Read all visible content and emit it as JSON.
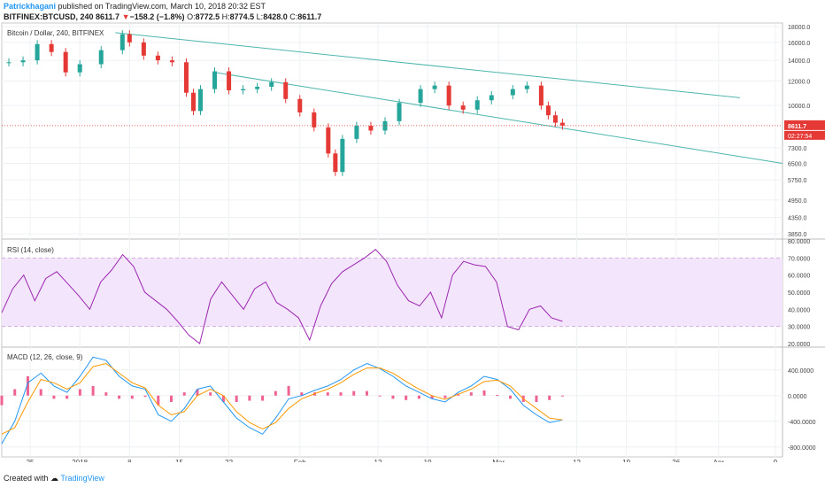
{
  "header": {
    "author": "Patrickhagani",
    "published": "published on TradingView.com, March 10, 2018 20:32 EST",
    "symbol": "BITFINEX:BTCUSD, 240",
    "last": "8611.7",
    "change_arrow": "▼",
    "change": "−158.2 (−1.8%)",
    "o_label": "O:",
    "o_value": "8772.5",
    "h_label": "H:",
    "h_value": "8774.5",
    "l_label": "L:",
    "l_value": "8428.0",
    "c_label": "C:",
    "c_value": "8611.7"
  },
  "footer": {
    "created_with": "Created with",
    "brand": "TradingView"
  },
  "colors": {
    "up": "#26a69a",
    "down": "#e53935",
    "trendline": "#4db6ac",
    "rsi": "#9c27b0",
    "rsi_band": "#f3e5fc",
    "macd": "#2196f3",
    "signal": "#ff9800",
    "hist": "#f06292",
    "price_marker": "#e53935"
  },
  "chart_data": [
    {
      "type": "line",
      "title": "Bitcoin / Dollar, 240, BITFINEX",
      "scale": "log",
      "y_ticks": [
        "18000.0",
        "16000.0",
        "14000.0",
        "12000.0",
        "10000.0",
        "8611.7",
        "7300.0",
        "6500.0",
        "5750.0",
        "4950.0",
        "4350.0",
        "3850.0"
      ],
      "ylim": [
        3850,
        18000
      ],
      "x_ticks": [
        "25",
        "2018",
        "8",
        "15",
        "22",
        "Feb",
        "12",
        "19",
        "Mar",
        "12",
        "19",
        "26",
        "Apr",
        "9"
      ],
      "last_price_label": "8611.7",
      "countdown_label": "02:27:54",
      "series": [
        {
          "values": [
            {
              "x": "2017-12-22",
              "y": 13800
            },
            {
              "x": "2017-12-24",
              "y": 14000
            },
            {
              "x": "2017-12-26",
              "y": 15800
            },
            {
              "x": "2017-12-28",
              "y": 14900
            },
            {
              "x": "2017-12-30",
              "y": 12800
            },
            {
              "x": "2018-01-01",
              "y": 13600
            },
            {
              "x": "2018-01-04",
              "y": 15100
            },
            {
              "x": "2018-01-07",
              "y": 17000
            },
            {
              "x": "2018-01-08",
              "y": 16000
            },
            {
              "x": "2018-01-10",
              "y": 14500
            },
            {
              "x": "2018-01-12",
              "y": 14000
            },
            {
              "x": "2018-01-14",
              "y": 13800
            },
            {
              "x": "2018-01-16",
              "y": 11000
            },
            {
              "x": "2018-01-17",
              "y": 9600
            },
            {
              "x": "2018-01-18",
              "y": 11300
            },
            {
              "x": "2018-01-20",
              "y": 12900
            },
            {
              "x": "2018-01-22",
              "y": 11200
            },
            {
              "x": "2018-01-24",
              "y": 11300
            },
            {
              "x": "2018-01-26",
              "y": 11500
            },
            {
              "x": "2018-01-28",
              "y": 11900
            },
            {
              "x": "2018-01-30",
              "y": 10500
            },
            {
              "x": "2018-02-01",
              "y": 9500
            },
            {
              "x": "2018-02-03",
              "y": 8500
            },
            {
              "x": "2018-02-05",
              "y": 7000
            },
            {
              "x": "2018-02-06",
              "y": 6100
            },
            {
              "x": "2018-02-07",
              "y": 7800
            },
            {
              "x": "2018-02-09",
              "y": 8600
            },
            {
              "x": "2018-02-11",
              "y": 8300
            },
            {
              "x": "2018-02-13",
              "y": 8900
            },
            {
              "x": "2018-02-15",
              "y": 10200
            },
            {
              "x": "2018-02-18",
              "y": 11300
            },
            {
              "x": "2018-02-20",
              "y": 11600
            },
            {
              "x": "2018-02-22",
              "y": 10000
            },
            {
              "x": "2018-02-24",
              "y": 9700
            },
            {
              "x": "2018-02-26",
              "y": 10400
            },
            {
              "x": "2018-02-28",
              "y": 10800
            },
            {
              "x": "2018-03-03",
              "y": 11300
            },
            {
              "x": "2018-03-05",
              "y": 11600
            },
            {
              "x": "2018-03-07",
              "y": 10000
            },
            {
              "x": "2018-03-08",
              "y": 9300
            },
            {
              "x": "2018-03-09",
              "y": 8800
            },
            {
              "x": "2018-03-10",
              "y": 8611.7
            }
          ]
        }
      ],
      "trendlines": [
        {
          "from": {
            "x": "2018-01-06",
            "y": 17200
          },
          "to": {
            "x": "2018-04-04",
            "y": 10600
          }
        },
        {
          "from": {
            "x": "2018-01-20",
            "y": 12800
          },
          "to": {
            "x": "2018-04-10",
            "y": 6500
          }
        }
      ]
    },
    {
      "type": "line",
      "title": "RSI (14, close)",
      "ylim": [
        20,
        80
      ],
      "y_ticks": [
        "80.0000",
        "70.0000",
        "60.0000",
        "50.0000",
        "40.0000",
        "30.0000",
        "20.0000"
      ],
      "bands": [
        30,
        70
      ],
      "series": [
        {
          "values": [
            38,
            52,
            60,
            45,
            58,
            62,
            55,
            48,
            40,
            56,
            63,
            72,
            65,
            50,
            45,
            40,
            33,
            25,
            20,
            46,
            56,
            48,
            40,
            52,
            56,
            44,
            40,
            35,
            22,
            42,
            55,
            62,
            66,
            70,
            75,
            68,
            54,
            45,
            42,
            50,
            35,
            60,
            68,
            66,
            65,
            56,
            30,
            28,
            40,
            42,
            35,
            33
          ]
        }
      ]
    },
    {
      "type": "line",
      "title": "MACD (12, 26, close, 9)",
      "ylim": [
        -900,
        700
      ],
      "y_ticks": [
        "400.0000",
        "0.0000",
        "-400.0000",
        "-800.0000"
      ],
      "series": [
        {
          "values": [
            -750,
            -400,
            200,
            350,
            150,
            50,
            300,
            600,
            550,
            300,
            150,
            100,
            -300,
            -400,
            -200,
            100,
            150,
            -100,
            -350,
            -500,
            -600,
            -350,
            -50,
            0,
            80,
            150,
            250,
            400,
            500,
            420,
            300,
            150,
            50,
            -50,
            -100,
            50,
            150,
            300,
            250,
            100,
            -150,
            -300,
            -420,
            -380
          ]
        },
        {
          "values": [
            -600,
            -500,
            -100,
            250,
            200,
            100,
            200,
            450,
            500,
            350,
            200,
            120,
            -150,
            -300,
            -250,
            0,
            100,
            0,
            -250,
            -420,
            -520,
            -420,
            -200,
            -50,
            30,
            100,
            200,
            330,
            430,
            430,
            350,
            220,
            100,
            0,
            -60,
            20,
            100,
            220,
            240,
            150,
            -50,
            -200,
            -350,
            -380
          ]
        },
        {
          "values": [
            -150,
            100,
            300,
            100,
            -50,
            -50,
            100,
            150,
            50,
            -50,
            -50,
            -20,
            -150,
            -100,
            50,
            100,
            50,
            -100,
            -100,
            -80,
            -80,
            70,
            150,
            50,
            50,
            50,
            50,
            70,
            70,
            -10,
            -50,
            -70,
            -50,
            -50,
            -40,
            30,
            50,
            80,
            10,
            -50,
            -100,
            -100,
            -70,
            0
          ]
        }
      ]
    }
  ]
}
